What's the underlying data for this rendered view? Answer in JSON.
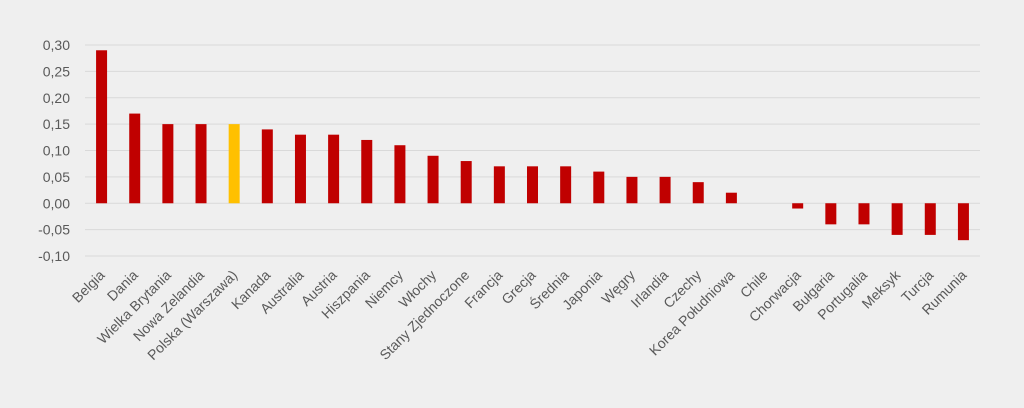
{
  "chart_data": {
    "type": "bar",
    "title": "",
    "xlabel": "",
    "ylabel": "",
    "categories": [
      "Belgia",
      "Dania",
      "Wielka Brytania",
      "Nowa Zelandia",
      "Polska (Warszawa)",
      "Kanada",
      "Australia",
      "Austria",
      "Hiszpania",
      "Niemcy",
      "Włochy",
      "Stany Zjednoczone",
      "Francja",
      "Grecja",
      "Średnia",
      "Japonia",
      "Węgry",
      "Irlandia",
      "Czechy",
      "Korea Południowa",
      "Chile",
      "Chorwacja",
      "Bułgaria",
      "Portugalia",
      "Meksyk",
      "Turcja",
      "Rumunia"
    ],
    "values": [
      0.29,
      0.17,
      0.15,
      0.15,
      0.15,
      0.14,
      0.13,
      0.13,
      0.12,
      0.11,
      0.09,
      0.08,
      0.07,
      0.07,
      0.07,
      0.06,
      0.05,
      0.05,
      0.04,
      0.02,
      0.0,
      -0.01,
      -0.04,
      -0.04,
      -0.06,
      -0.06,
      -0.07
    ],
    "ylim": [
      -0.1,
      0.3
    ],
    "yticks": [
      0.3,
      0.25,
      0.2,
      0.15,
      0.1,
      0.05,
      0.0,
      -0.05,
      -0.1
    ],
    "ytick_labels": [
      "0,30",
      "0,25",
      "0,20",
      "0,15",
      "0,10",
      "0,05",
      "0,00",
      "-0,05",
      "-0,10"
    ],
    "grid": true,
    "legend": "none",
    "colors": {
      "bar": "#c00000",
      "highlight": "#ffc000",
      "grid": "#d9d9d9",
      "axis_text": "#595959",
      "background": "#efefef"
    },
    "highlight_category": "Polska (Warszawa)"
  }
}
